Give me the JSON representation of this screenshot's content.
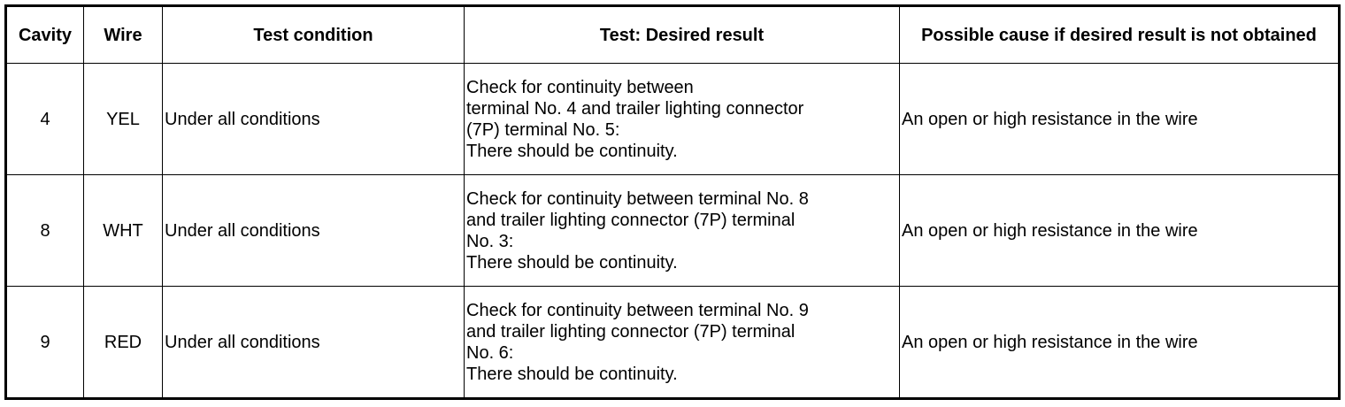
{
  "headers": [
    "Cavity",
    "Wire",
    "Test condition",
    "Test: Desired result",
    "Possible cause if desired result is not obtained"
  ],
  "rows": [
    {
      "cavity": "4",
      "wire": "YEL",
      "condition": "Under all conditions",
      "result": [
        "Check for continuity between",
        "terminal No. 4 and trailer lighting connector",
        "(7P) terminal No. 5:",
        "There should be continuity."
      ],
      "cause": "An open or high resistance in the wire"
    },
    {
      "cavity": "8",
      "wire": "WHT",
      "condition": "Under all conditions",
      "result": [
        "Check for continuity between terminal No. 8",
        "and trailer lighting connector (7P) terminal",
        "No. 3:",
        "There should be continuity."
      ],
      "cause": "An open or high resistance in the wire"
    },
    {
      "cavity": "9",
      "wire": "RED",
      "condition": "Under all conditions",
      "result": [
        "Check for continuity between terminal No. 9",
        "and trailer lighting connector (7P) terminal",
        "No. 6:",
        "There should be continuity."
      ],
      "cause": "An open or high resistance in the wire"
    }
  ]
}
